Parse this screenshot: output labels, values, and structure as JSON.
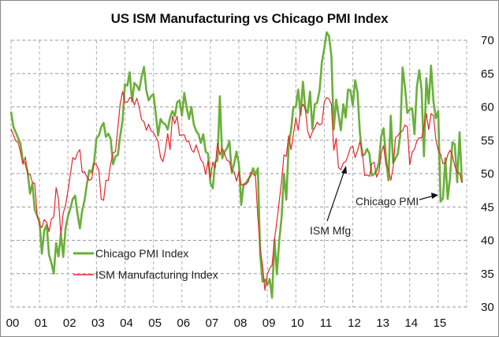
{
  "chart_data": {
    "type": "line",
    "title": "US ISM Manufacturing vs Chicago PMI Index",
    "xlabel": "",
    "ylabel": "",
    "ylim": [
      30,
      70
    ],
    "yticks": [
      30,
      35,
      40,
      45,
      50,
      55,
      60,
      65,
      70
    ],
    "y_axis_side": "right",
    "x_start": "2000-01",
    "x_frequency": "monthly",
    "xtick_labels": [
      "00",
      "01",
      "02",
      "03",
      "04",
      "05",
      "06",
      "07",
      "08",
      "09",
      "10",
      "11",
      "12",
      "13",
      "14",
      "15"
    ],
    "grid": true,
    "legend": {
      "placement": "bottom-left",
      "entries": [
        "Chicago PMI Index",
        "ISM Manufacturing Index"
      ]
    },
    "annotations": [
      {
        "text": "ISM Mfg",
        "points_to_series": "ISM Manufacturing Index",
        "points_to_date": "2011-08"
      },
      {
        "text": "Chicago PMI",
        "points_to_series": "Chicago PMI Index",
        "points_to_date": "2015-02"
      }
    ],
    "series": [
      {
        "name": "Chicago PMI Index",
        "color": "#6aaf3a",
        "values": [
          59.3,
          57.0,
          56.2,
          55.3,
          54.5,
          51.8,
          51.6,
          50.2,
          47.0,
          48.5,
          44.6,
          43.7,
          42.8,
          38.0,
          41.5,
          42.3,
          37.8,
          36.6,
          35.0,
          39.6,
          37.6,
          41.0,
          37.5,
          41.8,
          43.7,
          44.8,
          46.2,
          46.7,
          44.0,
          41.8,
          44.5,
          46.0,
          48.5,
          50.5,
          50.2,
          51.7,
          55.3,
          55.7,
          57.0,
          57.6,
          55.5,
          56.0,
          55.2,
          51.4,
          52.6,
          52.8,
          55.7,
          57.9,
          63.4,
          63.2,
          65.2,
          60.8,
          63.6,
          63.2,
          62.5,
          64.5,
          66.0,
          62.5,
          61.0,
          61.6,
          61.9,
          59.0,
          55.7,
          58.2,
          57.6,
          57.4,
          56.6,
          58.4,
          59.4,
          58.6,
          60.7,
          61.0,
          58.7,
          62.1,
          59.9,
          58.2,
          60.0,
          57.4,
          56.4,
          55.9,
          54.6,
          55.9,
          53.3,
          53.0,
          48.6,
          47.8,
          51.7,
          52.0,
          61.6,
          52.3,
          53.3,
          53.8,
          54.9,
          50.1,
          51.5,
          53.3,
          51.5,
          45.3,
          48.4,
          48.6,
          49.2,
          49.7,
          50.8,
          49.8,
          50.8,
          37.8,
          33.8,
          34.1,
          33.3,
          34.2,
          31.4,
          40.1,
          34.9,
          39.9,
          43.4,
          50.0,
          46.1,
          54.2,
          56.5,
          60.0,
          60.0,
          62.6,
          58.8,
          63.8,
          59.7,
          59.1,
          62.3,
          56.7,
          60.4,
          60.6,
          62.5,
          66.8,
          68.8,
          71.2,
          70.6,
          67.6,
          56.6,
          61.1,
          58.8,
          56.5,
          60.4,
          58.4,
          62.6,
          62.5,
          60.2,
          64.0,
          62.2,
          56.2,
          52.7,
          52.9,
          53.7,
          53.0,
          49.7,
          49.9,
          50.4,
          51.6,
          55.6,
          56.8,
          52.4,
          49.0,
          58.7,
          51.6,
          52.3,
          53.0,
          55.7,
          65.9,
          63.0,
          59.1,
          59.6,
          59.8,
          55.9,
          63.0,
          65.5,
          62.6,
          52.6,
          64.3,
          60.5,
          66.2,
          60.8,
          58.3,
          59.4,
          45.8,
          46.3,
          52.3,
          46.2,
          49.4,
          54.7,
          54.4,
          48.7,
          56.2,
          48.7
        ]
      },
      {
        "name": "ISM Manufacturing Index",
        "color": "#e8252a",
        "values": [
          56.7,
          55.8,
          54.9,
          54.7,
          53.2,
          51.4,
          52.5,
          49.9,
          49.9,
          48.7,
          48.5,
          43.9,
          42.3,
          41.9,
          43.1,
          42.7,
          41.3,
          43.2,
          43.5,
          47.9,
          46.2,
          40.8,
          44.1,
          45.3,
          47.5,
          49.9,
          52.4,
          52.1,
          53.1,
          53.6,
          50.2,
          50.3,
          49.5,
          49.0,
          49.2,
          51.6,
          51.3,
          50.5,
          46.2,
          46.0,
          49.0,
          49.0,
          51.5,
          53.1,
          53.3,
          56.9,
          60.5,
          62.3,
          60.7,
          60.7,
          61.4,
          61.3,
          60.3,
          61.3,
          60.0,
          58.1,
          57.8,
          56.5,
          57.4,
          56.4,
          56.2,
          55.5,
          54.8,
          52.4,
          51.8,
          53.5,
          56.0,
          53.6,
          58.6,
          57.5,
          58.6,
          55.7,
          55.8,
          55.8,
          54.8,
          54.8,
          53.6,
          53.2,
          54.3,
          53.2,
          52.1,
          51.6,
          49.9,
          51.9,
          49.3,
          51.7,
          50.8,
          54.6,
          52.8,
          53.8,
          53.0,
          52.0,
          51.8,
          50.5,
          50.3,
          48.9,
          50.3,
          48.3,
          48.3,
          48.4,
          48.8,
          50.2,
          50.0,
          49.5,
          43.5,
          38.7,
          36.2,
          32.5,
          34.9,
          35.8,
          36.3,
          40.1,
          42.8,
          45.8,
          48.9,
          52.8,
          52.6,
          55.7,
          53.6,
          55.9,
          58.4,
          56.5,
          59.6,
          60.4,
          59.7,
          56.4,
          55.3,
          56.3,
          56.9,
          57.7,
          57.3,
          57.5,
          60.8,
          61.4,
          61.2,
          60.4,
          53.5,
          55.3,
          50.9,
          50.6,
          51.6,
          51.8,
          52.7,
          53.9,
          54.1,
          52.4,
          53.4,
          54.8,
          53.5,
          49.7,
          49.8,
          49.6,
          51.5,
          51.7,
          49.5,
          50.2,
          53.1,
          54.2,
          51.3,
          50.7,
          49.0,
          50.9,
          55.4,
          55.7,
          56.2,
          56.4,
          57.3,
          57.0,
          51.3,
          53.2,
          53.7,
          54.9,
          55.4,
          55.3,
          57.1,
          59.0,
          56.6,
          59.0,
          58.7,
          55.1,
          53.5,
          52.9,
          51.5,
          51.5,
          52.8,
          53.5,
          52.7,
          51.1,
          50.2,
          50.1,
          48.6
        ]
      }
    ]
  }
}
